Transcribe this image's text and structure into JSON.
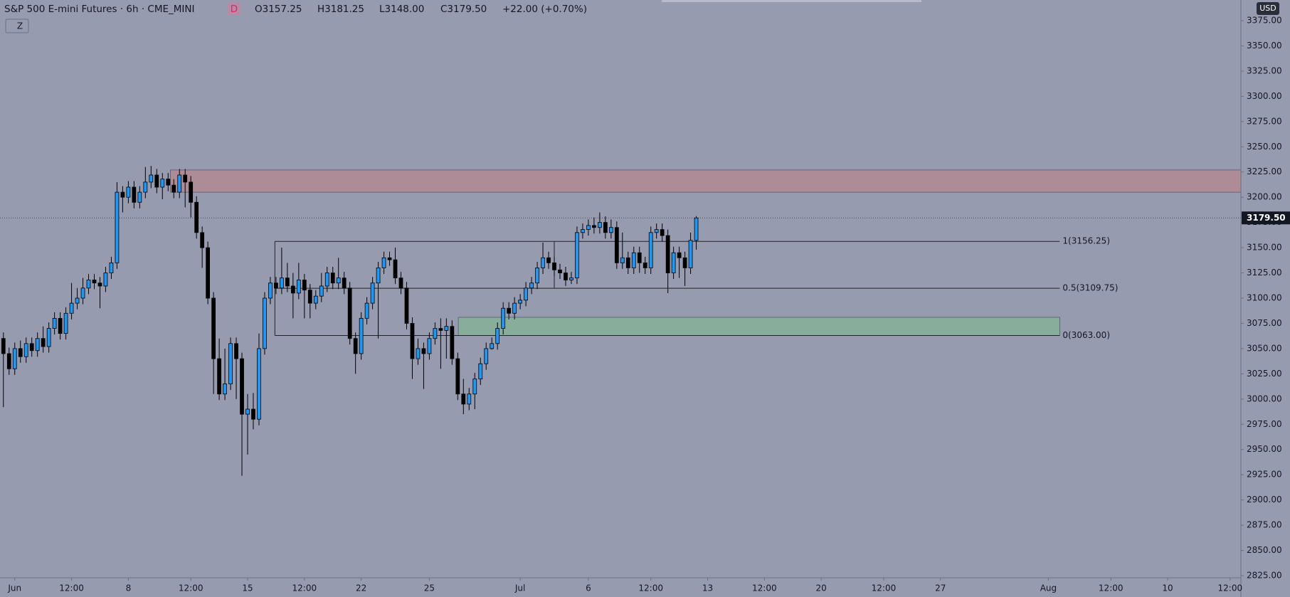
{
  "header": {
    "title": "S&P 500 E-mini Futures · 6h · CME_MINI",
    "badge": "D",
    "open": "O3157.25",
    "high": "H3181.25",
    "low": "L3148.00",
    "close": "C3179.50",
    "change": "+22.00 (+0.70%)",
    "zoom_button": "Z",
    "currency": "USD"
  },
  "chart_data": {
    "type": "candlestick",
    "title": "S&P 500 E-mini Futures · 6h · CME_MINI",
    "colors": {
      "up": "#2196f3",
      "down": "#000000",
      "wick": "#000000"
    },
    "xlim": [
      -0.6,
      217.9
    ],
    "xticks": [
      {
        "value": 2,
        "label": "Jun"
      },
      {
        "value": 12,
        "label": "12:00"
      },
      {
        "value": 22,
        "label": "8"
      },
      {
        "value": 33,
        "label": "12:00"
      },
      {
        "value": 43,
        "label": "15"
      },
      {
        "value": 53,
        "label": "12:00"
      },
      {
        "value": 63,
        "label": "22"
      },
      {
        "value": 75,
        "label": "25"
      },
      {
        "value": 91,
        "label": "Jul"
      },
      {
        "value": 103,
        "label": "6"
      },
      {
        "value": 114,
        "label": "12:00"
      },
      {
        "value": 124,
        "label": "13"
      },
      {
        "value": 134,
        "label": "12:00"
      },
      {
        "value": 144,
        "label": "20"
      },
      {
        "value": 155,
        "label": "12:00"
      },
      {
        "value": 165,
        "label": "27"
      },
      {
        "value": 184,
        "label": "Aug"
      },
      {
        "value": 195,
        "label": "12:00"
      },
      {
        "value": 205,
        "label": "10"
      },
      {
        "value": 216,
        "label": "12:00"
      }
    ],
    "ylim": [
      2825,
      3375
    ],
    "yticks": [
      {
        "value": 2825,
        "label": "2825.00"
      },
      {
        "value": 2850,
        "label": "2850.00"
      },
      {
        "value": 2875,
        "label": "2875.00"
      },
      {
        "value": 2900,
        "label": "2900.00"
      },
      {
        "value": 2925,
        "label": "2925.00"
      },
      {
        "value": 2950,
        "label": "2950.00"
      },
      {
        "value": 2975,
        "label": "2975.00"
      },
      {
        "value": 3000,
        "label": "3000.00"
      },
      {
        "value": 3025,
        "label": "3025.00"
      },
      {
        "value": 3050,
        "label": "3050.00"
      },
      {
        "value": 3075,
        "label": "3075.00"
      },
      {
        "value": 3100,
        "label": "3100.00"
      },
      {
        "value": 3125,
        "label": "3125.00"
      },
      {
        "value": 3150,
        "label": "3150.00"
      },
      {
        "value": 3175,
        "label": "3175.00"
      },
      {
        "value": 3200,
        "label": "3200.00"
      },
      {
        "value": 3225,
        "label": "3225.00"
      },
      {
        "value": 3250,
        "label": "3250.00"
      },
      {
        "value": 3275,
        "label": "3275.00"
      },
      {
        "value": 3300,
        "label": "3300.00"
      },
      {
        "value": 3325,
        "label": "3325.00"
      },
      {
        "value": 3350,
        "label": "3350.00"
      },
      {
        "value": 3375,
        "label": "3375.00"
      }
    ],
    "grid": false,
    "open": [
      3060,
      3045,
      3030,
      3050,
      3042,
      3055,
      3048,
      3060,
      3052,
      3070,
      3080,
      3065,
      3085,
      3095,
      3100,
      3110,
      3118,
      3115,
      3112,
      3125,
      3135,
      3205,
      3200,
      3210,
      3195,
      3205,
      3215,
      3222,
      3210,
      3218,
      3212,
      3205,
      3222,
      3215,
      3195,
      3165,
      3150,
      3100,
      3040,
      3005,
      3015,
      3055,
      3040,
      2985,
      2990,
      2980,
      3050,
      3100,
      3115,
      3110,
      3120,
      3112,
      3105,
      3118,
      3108,
      3095,
      3102,
      3112,
      3125,
      3115,
      3120,
      3110,
      3060,
      3045,
      3080,
      3095,
      3115,
      3130,
      3140,
      3138,
      3120,
      3110,
      3075,
      3040,
      3050,
      3045,
      3060,
      3070,
      3068,
      3072,
      3040,
      3005,
      2995,
      3005,
      3020,
      3035,
      3050,
      3055,
      3070,
      3090,
      3085,
      3095,
      3098,
      3110,
      3115,
      3130,
      3140,
      3135,
      3128,
      3125,
      3118,
      3120,
      3165,
      3168,
      3172,
      3170,
      3175,
      3165,
      3170,
      3135,
      3140,
      3130,
      3145,
      3135,
      3130,
      3165,
      3168,
      3162,
      3125,
      3145,
      3140,
      3130,
      3157.25
    ],
    "high": [
      3066,
      3051,
      3056,
      3058,
      3061,
      3061,
      3066,
      3072,
      3076,
      3086,
      3086,
      3091,
      3115,
      3110,
      3120,
      3124,
      3124,
      3121,
      3131,
      3141,
      3215,
      3211,
      3216,
      3216,
      3211,
      3230,
      3231,
      3228,
      3224,
      3224,
      3218,
      3228,
      3228,
      3221,
      3201,
      3171,
      3156,
      3106,
      3060,
      3050,
      3061,
      3061,
      3046,
      3005,
      3006,
      3065,
      3106,
      3121,
      3121,
      3150,
      3135,
      3125,
      3135,
      3124,
      3114,
      3108,
      3125,
      3131,
      3131,
      3140,
      3126,
      3116,
      3066,
      3086,
      3101,
      3121,
      3136,
      3146,
      3146,
      3150,
      3126,
      3116,
      3081,
      3060,
      3056,
      3066,
      3076,
      3080,
      3080,
      3078,
      3046,
      3020,
      3011,
      3026,
      3041,
      3056,
      3061,
      3076,
      3096,
      3096,
      3101,
      3104,
      3116,
      3121,
      3136,
      3155,
      3146,
      3141,
      3134,
      3131,
      3126,
      3171,
      3174,
      3178,
      3180,
      3185,
      3181,
      3178,
      3176,
      3165,
      3146,
      3151,
      3151,
      3141,
      3171,
      3174,
      3174,
      3168,
      3151,
      3151,
      3146,
      3165,
      3181.25
    ],
    "low": [
      2992,
      3024,
      3024,
      3036,
      3036,
      3042,
      3042,
      3046,
      3046,
      3064,
      3059,
      3059,
      3079,
      3089,
      3094,
      3104,
      3109,
      3090,
      3106,
      3119,
      3129,
      3185,
      3194,
      3189,
      3189,
      3199,
      3209,
      3204,
      3198,
      3206,
      3199,
      3199,
      3190,
      3180,
      3159,
      3130,
      3094,
      3005,
      2999,
      2999,
      3009,
      3000,
      2924,
      2945,
      2970,
      2974,
      3044,
      3094,
      3104,
      3104,
      3106,
      3080,
      3099,
      3080,
      3080,
      3089,
      3096,
      3106,
      3109,
      3109,
      3104,
      3054,
      3025,
      3039,
      3074,
      3089,
      3060,
      3124,
      3132,
      3114,
      3104,
      3069,
      3020,
      3034,
      3010,
      3039,
      3054,
      3030,
      3040,
      3034,
      2999,
      2985,
      2989,
      2990,
      3014,
      3029,
      3049,
      3049,
      3064,
      3079,
      3079,
      3089,
      3092,
      3104,
      3109,
      3124,
      3129,
      3122,
      3119,
      3112,
      3114,
      3114,
      3159,
      3162,
      3164,
      3164,
      3159,
      3159,
      3129,
      3129,
      3124,
      3124,
      3125,
      3124,
      3124,
      3159,
      3156,
      3105,
      3119,
      3120,
      3112,
      3124,
      3148
    ],
    "close": [
      3045,
      3030,
      3050,
      3042,
      3055,
      3048,
      3060,
      3052,
      3070,
      3080,
      3065,
      3085,
      3095,
      3100,
      3110,
      3118,
      3115,
      3112,
      3125,
      3135,
      3205,
      3200,
      3210,
      3195,
      3205,
      3215,
      3222,
      3210,
      3218,
      3212,
      3205,
      3222,
      3215,
      3195,
      3165,
      3150,
      3100,
      3040,
      3005,
      3015,
      3055,
      3040,
      2985,
      2990,
      2980,
      3050,
      3100,
      3115,
      3110,
      3120,
      3112,
      3105,
      3118,
      3108,
      3095,
      3102,
      3112,
      3125,
      3115,
      3120,
      3110,
      3060,
      3045,
      3080,
      3095,
      3115,
      3130,
      3140,
      3138,
      3120,
      3110,
      3075,
      3040,
      3050,
      3045,
      3060,
      3070,
      3068,
      3072,
      3040,
      3005,
      2995,
      3005,
      3020,
      3035,
      3050,
      3055,
      3070,
      3090,
      3085,
      3095,
      3098,
      3110,
      3115,
      3130,
      3140,
      3135,
      3128,
      3125,
      3118,
      3120,
      3165,
      3168,
      3172,
      3170,
      3175,
      3165,
      3170,
      3135,
      3140,
      3130,
      3145,
      3135,
      3130,
      3165,
      3168,
      3162,
      3125,
      3145,
      3140,
      3130,
      3157.25,
      3179.5
    ],
    "last_price": 3179.5,
    "last_price_label": "3179.50",
    "zones": [
      {
        "low": 3205,
        "high": 3227,
        "color": "#ad8c98"
      },
      {
        "low": 3063,
        "high": 3081,
        "color": "#88ad9a"
      }
    ],
    "fib": [
      {
        "value": 3156.25,
        "label": "1(3156.25)"
      },
      {
        "value": 3109.75,
        "label": "0.5(3109.75)"
      },
      {
        "value": 3063,
        "label": "0(3063.00)"
      }
    ]
  }
}
